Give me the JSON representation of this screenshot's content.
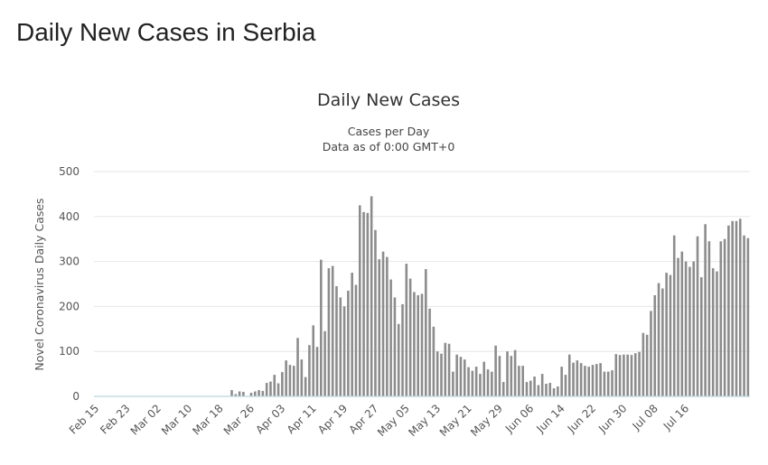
{
  "page_title": "Daily New Cases in Serbia",
  "chart_data": {
    "type": "bar",
    "title": "Daily New Cases",
    "subtitle": "Cases per Day",
    "subtitle2": "Data as of 0:00 GMT+0",
    "xlabel": "",
    "ylabel": "Novel Coronavirus Daily Cases",
    "ylim": [
      0,
      500
    ],
    "yticks": [
      0,
      100,
      200,
      300,
      400,
      500
    ],
    "grid": true,
    "bar_color": "#8c8c8c",
    "x_start": "Feb 15",
    "x_tick_labels": [
      "Feb 15",
      "Feb 23",
      "Mar 02",
      "Mar 10",
      "Mar 18",
      "Mar 26",
      "Apr 03",
      "Apr 11",
      "Apr 19",
      "Apr 27",
      "May 05",
      "May 13",
      "May 21",
      "May 29",
      "Jun 06",
      "Jun 14",
      "Jun 22",
      "Jun 30",
      "Jul 08",
      "Jul 16"
    ],
    "values": [
      0,
      0,
      0,
      0,
      0,
      0,
      0,
      0,
      0,
      0,
      0,
      0,
      0,
      0,
      0,
      0,
      0,
      0,
      0,
      0,
      0,
      0,
      0,
      0,
      0,
      0,
      0,
      0,
      0,
      0,
      0,
      0,
      0,
      0,
      0,
      14,
      5,
      11,
      10,
      0,
      8,
      11,
      14,
      12,
      30,
      33,
      48,
      29,
      54,
      80,
      70,
      68,
      130,
      82,
      43,
      114,
      158,
      110,
      304,
      145,
      285,
      290,
      245,
      220,
      200,
      235,
      275,
      248,
      425,
      410,
      408,
      445,
      370,
      305,
      322,
      310,
      260,
      220,
      161,
      205,
      295,
      262,
      232,
      225,
      228,
      283,
      195,
      155,
      100,
      95,
      119,
      117,
      55,
      93,
      88,
      82,
      65,
      57,
      66,
      50,
      77,
      60,
      55,
      113,
      90,
      32,
      100,
      90,
      103,
      68,
      68,
      32,
      35,
      44,
      25,
      50,
      28,
      30,
      18,
      22,
      66,
      48,
      93,
      75,
      80,
      74,
      68,
      66,
      70,
      72,
      74,
      55,
      55,
      58,
      94,
      92,
      93,
      93,
      92,
      96,
      99,
      141,
      137,
      190,
      225,
      252,
      240,
      275,
      270,
      358,
      308,
      322,
      300,
      288,
      300,
      356,
      265,
      383,
      345,
      285,
      278,
      345,
      350,
      380,
      390,
      390,
      395,
      358,
      352
    ]
  }
}
